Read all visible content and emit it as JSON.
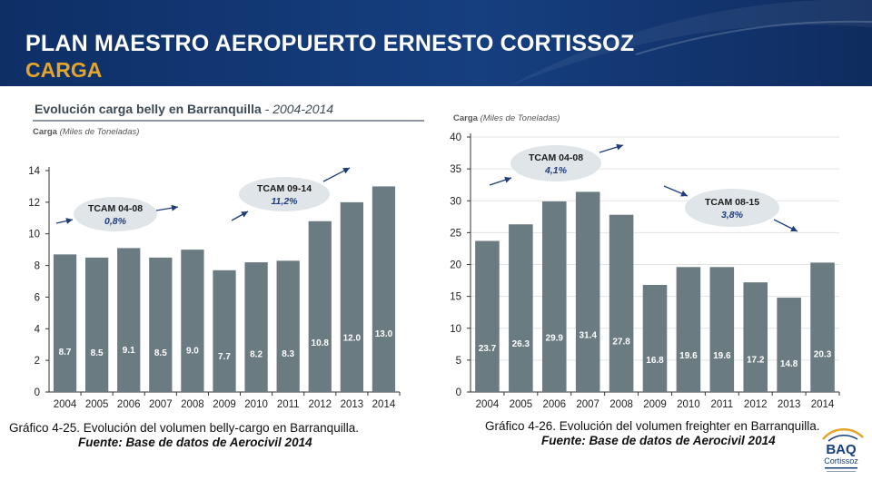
{
  "header": {
    "title": "PLAN MAESTRO AEROPUERTO ERNESTO CORTISSOZ",
    "subtitle": "CARGA"
  },
  "colors": {
    "header_bg": "#163f80",
    "subtitle": "#e3a52a",
    "bar": "#6b7b82",
    "bubble": "#dfe5e8",
    "arrow": "#1f3d7a"
  },
  "chart_data": [
    {
      "type": "bar",
      "title": "Evolución carga belly en Barranquilla",
      "title_suffix": " - 2004-2014",
      "ylabel": "Carga",
      "ylabel_unit": "(Miles de Toneladas)",
      "categories": [
        "2004",
        "2005",
        "2006",
        "2007",
        "2008",
        "2009",
        "2010",
        "2011",
        "2012",
        "2013",
        "2014"
      ],
      "values": [
        8.7,
        8.5,
        9.1,
        8.5,
        9.0,
        7.7,
        8.2,
        8.3,
        10.8,
        12.0,
        13.0
      ],
      "ylim": [
        0,
        14
      ],
      "yticks": [
        0,
        2,
        4,
        6,
        8,
        10,
        12,
        14
      ],
      "grid": false,
      "annotations": [
        {
          "label": "TCAM 04-08",
          "value": "0,8%"
        },
        {
          "label": "TCAM 09-14",
          "value": "11,2%"
        }
      ],
      "caption": "Gráfico 4-25. Evolución del volumen belly-cargo en Barranquilla.",
      "source": "Fuente: Base de datos de Aerocivil 2014"
    },
    {
      "type": "bar",
      "title": "",
      "ylabel": "Carga",
      "ylabel_unit": "(Miles de Toneladas)",
      "categories": [
        "2004",
        "2005",
        "2006",
        "2007",
        "2008",
        "2009",
        "2010",
        "2011",
        "2012",
        "2013",
        "2014"
      ],
      "values": [
        23.7,
        26.3,
        29.9,
        31.4,
        27.8,
        16.8,
        19.6,
        19.6,
        17.2,
        14.8,
        20.3
      ],
      "ylim": [
        0,
        40
      ],
      "yticks": [
        0,
        5,
        10,
        15,
        20,
        25,
        30,
        35,
        40
      ],
      "grid": true,
      "annotations": [
        {
          "label": "TCAM 04-08",
          "value": "4,1%"
        },
        {
          "label": "TCAM 08-15",
          "value": "3,8%"
        }
      ],
      "caption": "Gráfico 4-26. Evolución del volumen freighter en Barranquilla.",
      "source": "Fuente: Base de datos de Aerocivil 2014"
    }
  ],
  "logo": {
    "name": "BAQ",
    "sub": "Cortissoz"
  }
}
